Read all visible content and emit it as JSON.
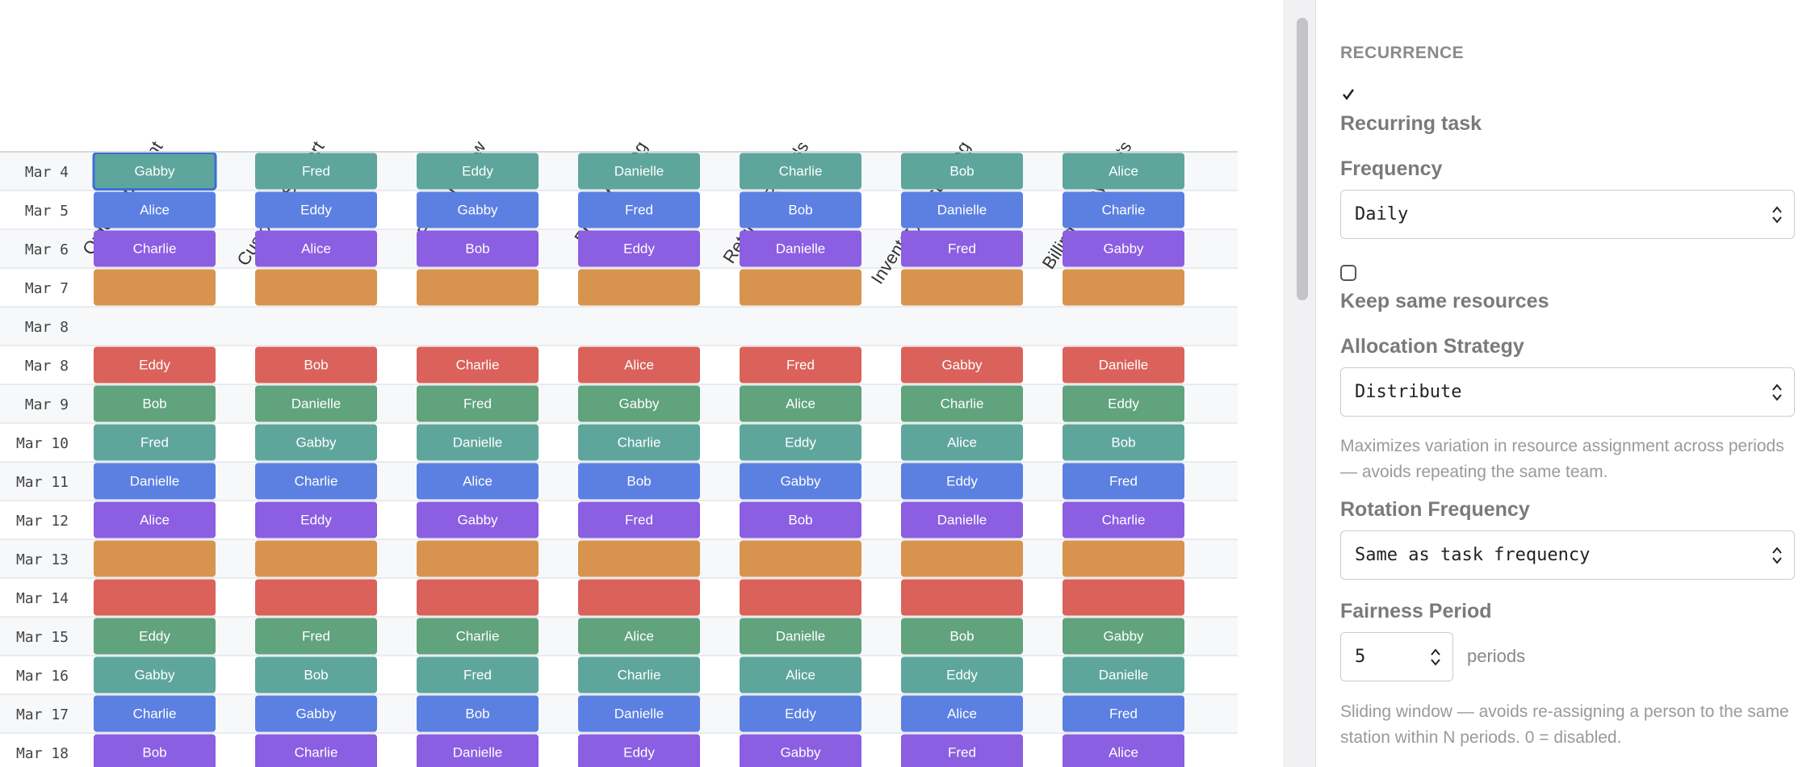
{
  "schedule": {
    "columns": [
      "Order Fulfillment",
      "Customer Support",
      "Fraud Review",
      "Product Listing",
      "Return & Refunds",
      "Inventory Restocking",
      "Billing & Payments"
    ],
    "rows": [
      {
        "date": "Mar 4",
        "color": "#5ea69c",
        "cells": [
          "Gabby",
          "Fred",
          "Eddy",
          "Danielle",
          "Charlie",
          "Bob",
          "Alice"
        ]
      },
      {
        "date": "Mar 5",
        "color": "#5b80e2",
        "cells": [
          "Alice",
          "Eddy",
          "Gabby",
          "Fred",
          "Bob",
          "Danielle",
          "Charlie"
        ]
      },
      {
        "date": "Mar 6",
        "color": "#8b5ee2",
        "cells": [
          "Charlie",
          "Alice",
          "Bob",
          "Eddy",
          "Danielle",
          "Fred",
          "Gabby"
        ]
      },
      {
        "date": "Mar 7",
        "color": "#d8944f"
      },
      {
        "date": "Mar 8"
      },
      {
        "date": "Mar 8",
        "color": "#da625b",
        "cells": [
          "Eddy",
          "Bob",
          "Charlie",
          "Alice",
          "Fred",
          "Gabby",
          "Danielle"
        ]
      },
      {
        "date": "Mar 9",
        "color": "#60a37d",
        "cells": [
          "Bob",
          "Danielle",
          "Fred",
          "Gabby",
          "Alice",
          "Charlie",
          "Eddy"
        ]
      },
      {
        "date": "Mar 10",
        "color": "#5ea69c",
        "cells": [
          "Fred",
          "Gabby",
          "Danielle",
          "Charlie",
          "Eddy",
          "Alice",
          "Bob"
        ]
      },
      {
        "date": "Mar 11",
        "color": "#5b80e2",
        "cells": [
          "Danielle",
          "Charlie",
          "Alice",
          "Bob",
          "Gabby",
          "Eddy",
          "Fred"
        ]
      },
      {
        "date": "Mar 12",
        "color": "#8b5ee2",
        "cells": [
          "Alice",
          "Eddy",
          "Gabby",
          "Fred",
          "Bob",
          "Danielle",
          "Charlie"
        ]
      },
      {
        "date": "Mar 13",
        "color": "#d8944f"
      },
      {
        "date": "Mar 14",
        "color": "#da625b"
      },
      {
        "date": "Mar 15",
        "color": "#60a37d",
        "cells": [
          "Eddy",
          "Fred",
          "Charlie",
          "Alice",
          "Danielle",
          "Bob",
          "Gabby"
        ]
      },
      {
        "date": "Mar 16",
        "color": "#5ea69c",
        "cells": [
          "Gabby",
          "Bob",
          "Fred",
          "Charlie",
          "Alice",
          "Eddy",
          "Danielle"
        ]
      },
      {
        "date": "Mar 17",
        "color": "#5b80e2",
        "cells": [
          "Charlie",
          "Gabby",
          "Bob",
          "Danielle",
          "Eddy",
          "Alice",
          "Fred"
        ]
      },
      {
        "date": "Mar 18",
        "color": "#8b5ee2",
        "cells": [
          "Bob",
          "Charlie",
          "Danielle",
          "Eddy",
          "Gabby",
          "Fred",
          "Alice"
        ]
      }
    ]
  },
  "panel": {
    "section": "RECURRENCE",
    "recurring": {
      "label": "Recurring task",
      "checked": true
    },
    "frequency": {
      "label": "Frequency",
      "value": "Daily"
    },
    "keep_same": {
      "label": "Keep same resources",
      "checked": false
    },
    "allocation": {
      "label": "Allocation Strategy",
      "value": "Distribute",
      "help": "Maximizes variation in resource assignment across periods — avoids repeating the same team."
    },
    "rotation": {
      "label": "Rotation Frequency",
      "value": "Same as task frequency"
    },
    "fairness": {
      "label": "Fairness Period",
      "value": 5,
      "unit": "periods",
      "help": "Sliding window — avoids re-assigning a person to the same station within N periods. 0 = disabled."
    }
  }
}
